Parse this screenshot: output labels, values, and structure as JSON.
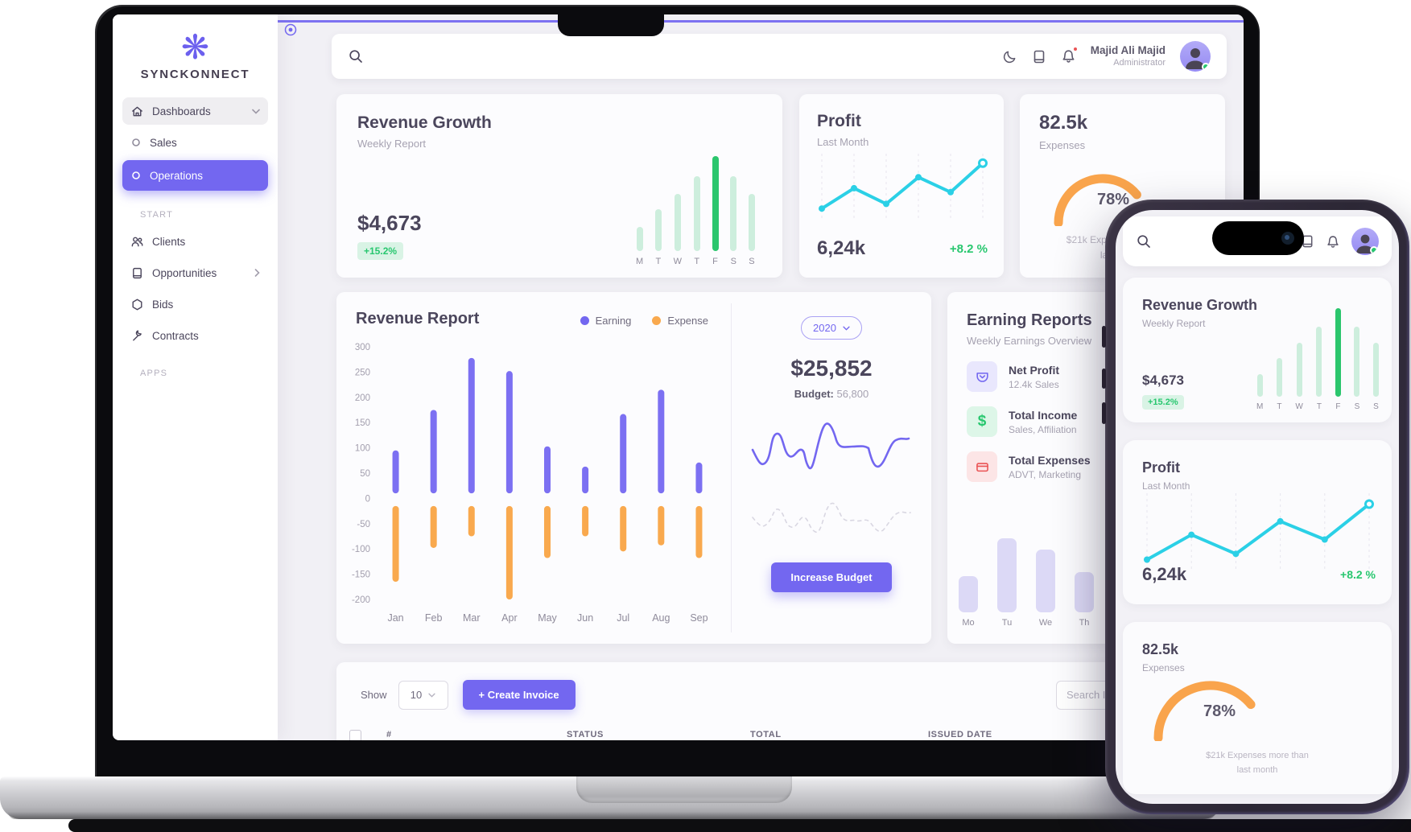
{
  "colors": {
    "primary": "#7367f0",
    "green": "#28c76f",
    "green_bg": "#d9f3e5",
    "orange": "#f9a94e",
    "cyan": "#2bd0e6",
    "red": "#ea5455",
    "text_dark": "#4b465c",
    "text_muted": "#a6a2b1"
  },
  "sidebar": {
    "logo_text": "SYNCKONNECT",
    "sections": {
      "start": "START",
      "apps": "APPS"
    },
    "items": {
      "dashboards": "Dashboards",
      "sales": "Sales",
      "operations": "Operations",
      "clients": "Clients",
      "opportunities": "Opportunities",
      "bids": "Bids",
      "contracts": "Contracts"
    }
  },
  "header": {
    "user_name": "Majid Ali Majid",
    "user_role": "Administrator"
  },
  "cards": {
    "revenue_growth": {
      "title": "Revenue Growth",
      "subtitle": "Weekly Report",
      "value": "$4,673",
      "badge": "+15.2%",
      "chart": {
        "type": "bar",
        "labels": [
          "M",
          "T",
          "W",
          "T",
          "F",
          "S",
          "S"
        ],
        "values": [
          30,
          52,
          72,
          94,
          119,
          94,
          72
        ],
        "highlight_index": 4,
        "color": "#cdeedd",
        "highlight_color": "#2bc66d"
      }
    },
    "profit": {
      "title": "Profit",
      "subtitle": "Last Month",
      "value": "6,24k",
      "delta": "+8.2 %",
      "chart": {
        "type": "line",
        "y": [
          12,
          38,
          18,
          52,
          33,
          70
        ],
        "color": "#2bd0e6"
      }
    },
    "expenses": {
      "value": "82.5k",
      "label": "Expenses",
      "percent": 78,
      "percent_label": "78%",
      "note_line1": "$21k Expenses more than",
      "note_line2": "last month",
      "color": "#f9a44c"
    }
  },
  "revenue_report": {
    "title": "Revenue Report",
    "legend": [
      {
        "label": "Earning",
        "color": "#7367f0"
      },
      {
        "label": "Expense",
        "color": "#f9a94e"
      }
    ],
    "chart": {
      "type": "bar",
      "months": [
        "Jan",
        "Feb",
        "Mar",
        "Apr",
        "May",
        "Jun",
        "Jul",
        "Aug",
        "Sep"
      ],
      "earning": [
        95,
        175,
        278,
        252,
        103,
        63,
        167,
        215,
        71
      ],
      "expense": [
        -165,
        -98,
        -75,
        -200,
        -118,
        -75,
        -105,
        -93,
        -118
      ],
      "ticks": [
        300,
        250,
        200,
        150,
        100,
        50,
        0,
        -50,
        -100,
        -150,
        -200
      ],
      "earn_base": 10,
      "exp_base": -15,
      "earning_color": "#7c70f2",
      "expense_color": "#f9a94e"
    }
  },
  "budget": {
    "year": "2020",
    "amount": "$25,852",
    "label": "Budget:",
    "value": "56,800",
    "button_label": "Increase Budget"
  },
  "earning_reports": {
    "title": "Earning Reports",
    "subtitle": "Weekly Earnings Overview",
    "items": [
      {
        "icon": "wallet-icon",
        "title": "Net Profit",
        "subtitle": "12.4k Sales"
      },
      {
        "icon": "dollar-icon",
        "title": "Total Income",
        "subtitle": "Sales, Affiliation"
      },
      {
        "icon": "credit-card-icon",
        "title": "Total Expenses",
        "subtitle": "ADVT, Marketing"
      }
    ],
    "chart": {
      "type": "bar",
      "labels": [
        "Mo",
        "Tu",
        "We",
        "Th"
      ],
      "values": [
        45,
        92,
        78,
        50
      ],
      "color": "#dcd9f6"
    }
  },
  "invoice": {
    "show_label": "Show",
    "per_page": "10",
    "create_label": "+ Create Invoice",
    "search_placeholder": "Search Invoice",
    "table_headers": [
      "#",
      "STATUS",
      "TOTAL",
      "ISSUED DATE"
    ]
  }
}
